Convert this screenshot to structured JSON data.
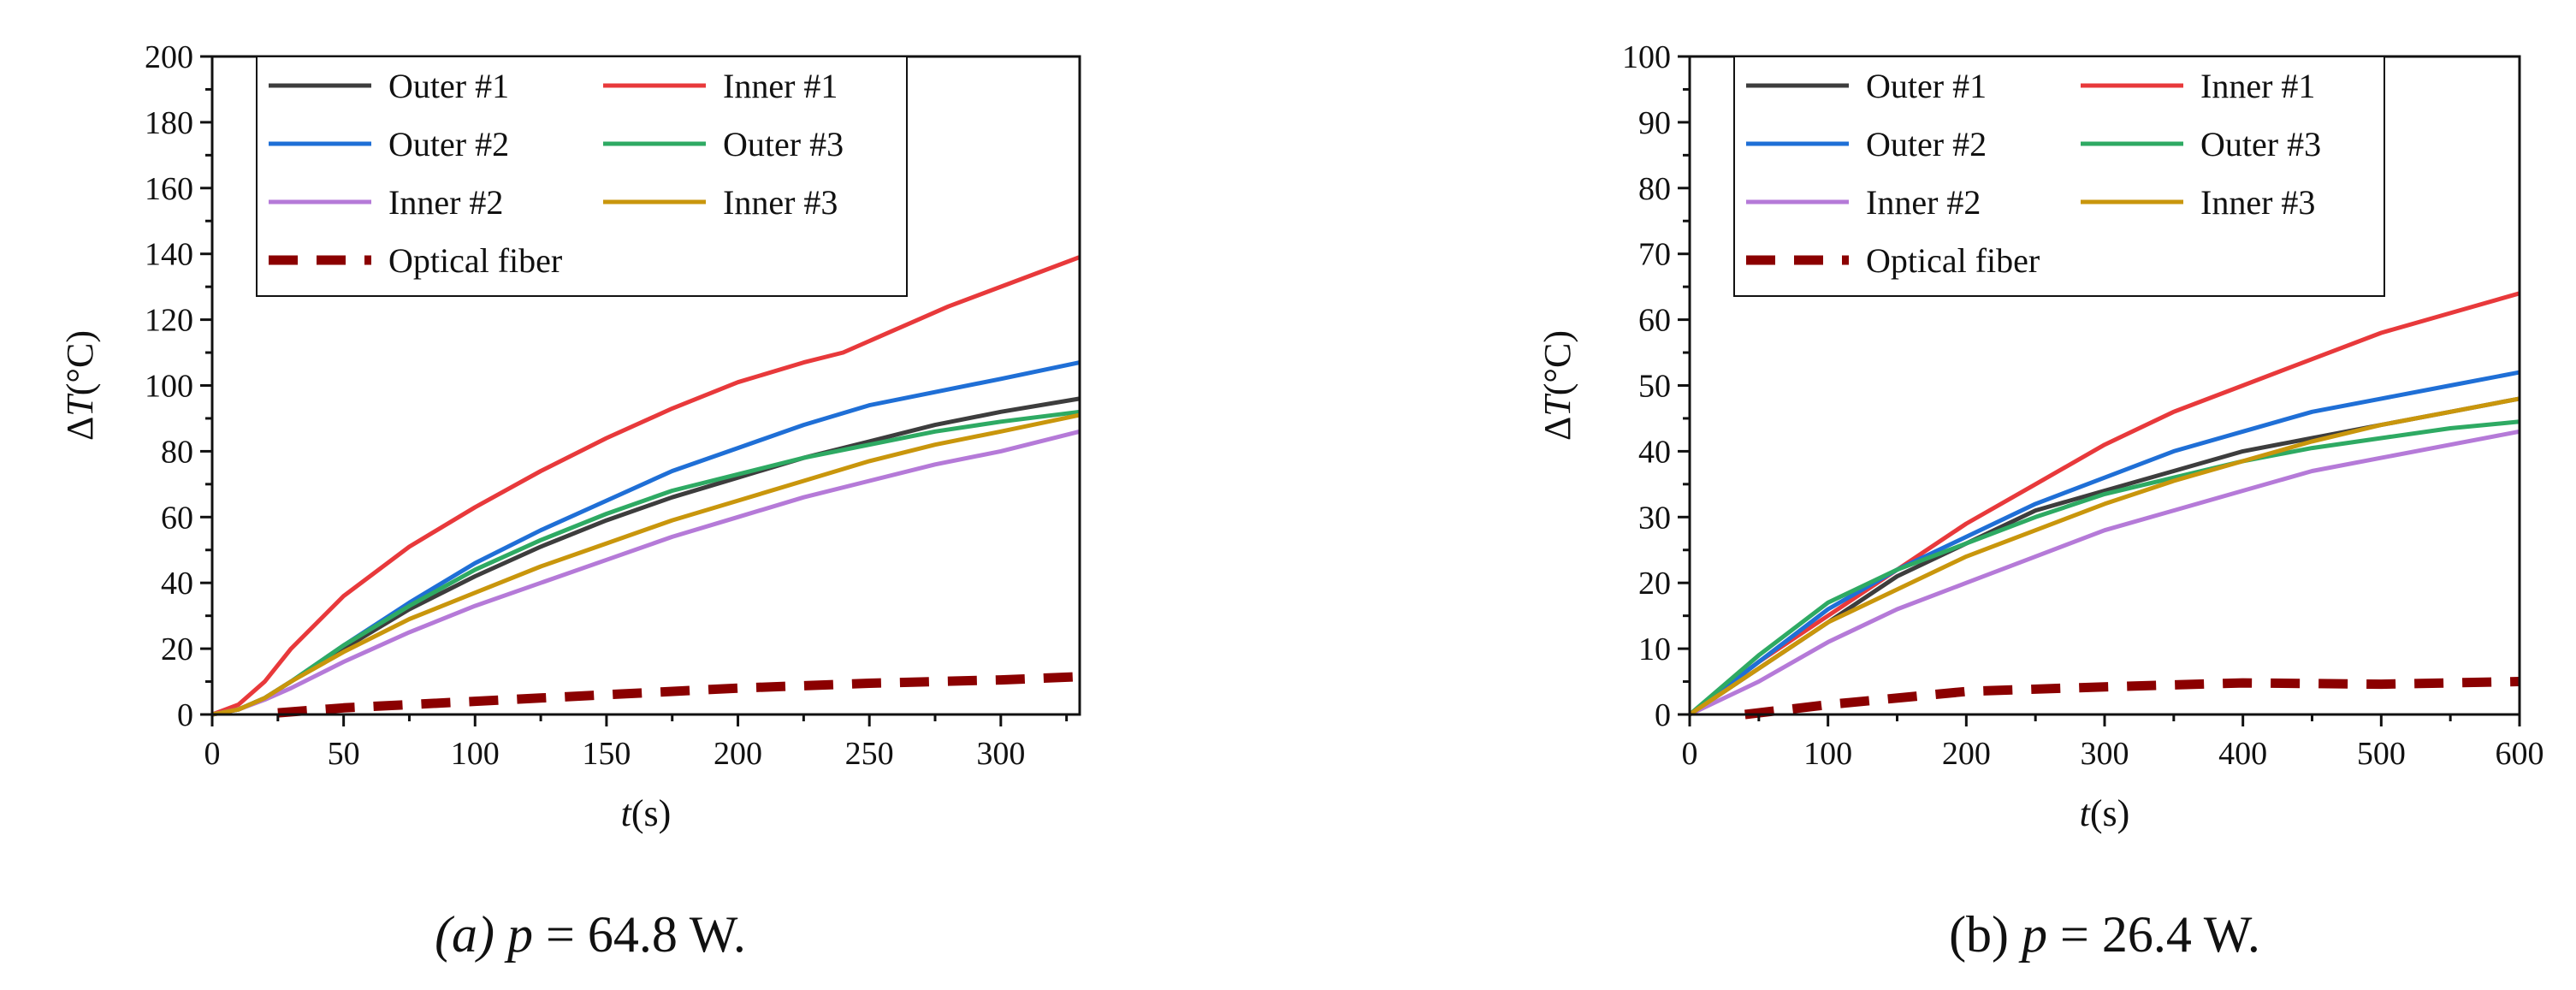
{
  "chart_data": [
    {
      "type": "line",
      "caption": {
        "label": "(a)",
        "variable": "p",
        "equals": "=",
        "value": "64.8 W."
      },
      "xlabel": {
        "italic": "t",
        "rest": "(s)"
      },
      "ylabel": {
        "delta": "Δ",
        "italic": "T",
        "rest": "(°C)"
      },
      "xlim": [
        0,
        330
      ],
      "ylim": [
        0,
        200
      ],
      "xticks": [
        0,
        50,
        100,
        150,
        200,
        250,
        300
      ],
      "yticks": [
        0,
        20,
        40,
        60,
        80,
        100,
        120,
        140,
        160,
        180,
        200
      ],
      "legend": {
        "placement": "top-left",
        "columns": [
          [
            "Outer #1",
            "Outer #2",
            "Inner #2",
            "Optical fiber"
          ],
          [
            "Inner #1",
            "Outer #3",
            "Inner #3"
          ]
        ]
      },
      "series": [
        {
          "name": "Outer #1",
          "color": "#3d3d3d",
          "dashed": false,
          "x": [
            0,
            10,
            20,
            30,
            50,
            75,
            100,
            125,
            150,
            175,
            200,
            225,
            250,
            275,
            300,
            330
          ],
          "y": [
            0,
            1.5,
            5,
            10,
            20,
            32,
            42,
            51,
            59,
            66,
            72,
            78,
            83,
            88,
            92,
            96
          ]
        },
        {
          "name": "Inner #1",
          "color": "#e8393b",
          "dashed": false,
          "x": [
            0,
            10,
            20,
            30,
            50,
            75,
            100,
            125,
            150,
            175,
            200,
            225,
            240,
            260,
            280,
            300,
            330
          ],
          "y": [
            0,
            3,
            10,
            20,
            36,
            51,
            63,
            74,
            84,
            93,
            101,
            107,
            110,
            117,
            124,
            130,
            139
          ]
        },
        {
          "name": "Outer #2",
          "color": "#1f6fd6",
          "dashed": false,
          "x": [
            0,
            10,
            20,
            30,
            50,
            75,
            100,
            125,
            150,
            175,
            200,
            225,
            250,
            275,
            300,
            330
          ],
          "y": [
            0,
            1.5,
            5,
            10,
            21,
            34,
            46,
            56,
            65,
            74,
            81,
            88,
            94,
            98,
            102,
            107
          ]
        },
        {
          "name": "Outer #3",
          "color": "#2eaa63",
          "dashed": false,
          "x": [
            0,
            10,
            20,
            30,
            50,
            75,
            100,
            125,
            150,
            175,
            200,
            225,
            250,
            275,
            300,
            330
          ],
          "y": [
            0,
            1.5,
            5,
            10,
            21,
            33,
            44,
            53,
            61,
            68,
            73,
            78,
            82,
            86,
            89,
            92
          ]
        },
        {
          "name": "Inner #2",
          "color": "#b57ad8",
          "dashed": false,
          "x": [
            0,
            10,
            20,
            30,
            50,
            75,
            100,
            125,
            150,
            175,
            200,
            225,
            250,
            275,
            300,
            330
          ],
          "y": [
            0,
            1.5,
            4.5,
            8,
            16,
            25,
            33,
            40,
            47,
            54,
            60,
            66,
            71,
            76,
            80,
            86
          ]
        },
        {
          "name": "Inner #3",
          "color": "#c9960c",
          "dashed": false,
          "x": [
            0,
            10,
            20,
            30,
            50,
            75,
            100,
            125,
            150,
            175,
            200,
            225,
            250,
            275,
            300,
            330
          ],
          "y": [
            0,
            1.5,
            5,
            10,
            19,
            29,
            37,
            45,
            52,
            59,
            65,
            71,
            77,
            82,
            86,
            91
          ]
        },
        {
          "name": "Optical fiber",
          "color": "#8b0000",
          "dashed": true,
          "x": [
            25,
            50,
            100,
            150,
            200,
            250,
            300,
            330
          ],
          "y": [
            0.5,
            2,
            4,
            6,
            8,
            9.5,
            10.5,
            11.5
          ]
        }
      ]
    },
    {
      "type": "line",
      "caption": {
        "label": "(b)",
        "variable": "p",
        "equals": "=",
        "value": "26.4 W."
      },
      "xlabel": {
        "italic": "t",
        "rest": "(s)"
      },
      "ylabel": {
        "delta": "Δ",
        "italic": "T",
        "rest": "(°C)"
      },
      "xlim": [
        0,
        600
      ],
      "ylim": [
        0,
        100
      ],
      "xticks": [
        0,
        100,
        200,
        300,
        400,
        500,
        600
      ],
      "yticks": [
        0,
        10,
        20,
        30,
        40,
        50,
        60,
        70,
        80,
        90,
        100
      ],
      "legend": {
        "placement": "top-left",
        "columns": [
          [
            "Outer #1",
            "Outer #2",
            "Inner #2",
            "Optical fiber"
          ],
          [
            "Inner #1",
            "Outer #3",
            "Inner #3"
          ]
        ]
      },
      "series": [
        {
          "name": "Outer #1",
          "color": "#3d3d3d",
          "dashed": false,
          "x": [
            0,
            50,
            100,
            150,
            200,
            250,
            300,
            350,
            400,
            450,
            500,
            550,
            600
          ],
          "y": [
            0,
            7,
            14,
            21,
            26,
            31,
            34,
            37,
            40,
            42,
            44,
            46,
            48
          ]
        },
        {
          "name": "Inner #1",
          "color": "#e8393b",
          "dashed": false,
          "x": [
            0,
            50,
            100,
            150,
            200,
            250,
            300,
            350,
            400,
            450,
            500,
            550,
            600
          ],
          "y": [
            0,
            8,
            15,
            22,
            29,
            35,
            41,
            46,
            50,
            54,
            58,
            61,
            64
          ]
        },
        {
          "name": "Outer #2",
          "color": "#1f6fd6",
          "dashed": false,
          "x": [
            0,
            50,
            100,
            150,
            200,
            250,
            300,
            350,
            400,
            450,
            500,
            550,
            600
          ],
          "y": [
            0,
            8,
            16,
            22,
            27,
            32,
            36,
            40,
            43,
            46,
            48,
            50,
            52
          ]
        },
        {
          "name": "Outer #3",
          "color": "#2eaa63",
          "dashed": false,
          "x": [
            0,
            50,
            100,
            150,
            200,
            250,
            300,
            350,
            400,
            450,
            500,
            550,
            600
          ],
          "y": [
            0,
            9,
            17,
            22,
            26,
            30,
            33.5,
            36,
            38.5,
            40.5,
            42,
            43.5,
            44.5
          ]
        },
        {
          "name": "Inner #2",
          "color": "#b57ad8",
          "dashed": false,
          "x": [
            0,
            50,
            100,
            150,
            200,
            250,
            300,
            350,
            400,
            450,
            500,
            550,
            600
          ],
          "y": [
            0,
            5,
            11,
            16,
            20,
            24,
            28,
            31,
            34,
            37,
            39,
            41,
            43
          ]
        },
        {
          "name": "Inner #3",
          "color": "#c9960c",
          "dashed": false,
          "x": [
            0,
            50,
            100,
            150,
            200,
            250,
            300,
            350,
            400,
            450,
            500,
            550,
            600
          ],
          "y": [
            0,
            7,
            14,
            19,
            24,
            28,
            32,
            35.5,
            38.5,
            41.5,
            44,
            46,
            48
          ]
        },
        {
          "name": "Optical fiber",
          "color": "#8b0000",
          "dashed": true,
          "x": [
            40,
            100,
            200,
            300,
            400,
            500,
            600
          ],
          "y": [
            0,
            1.5,
            3.5,
            4.2,
            4.8,
            4.6,
            5
          ]
        }
      ]
    }
  ]
}
